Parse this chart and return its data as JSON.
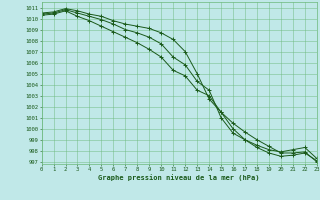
{
  "title": "Graphe pression niveau de la mer (hPa)",
  "background_color": "#c0e8e8",
  "grid_color": "#6ab87a",
  "line_color": "#1a5a1a",
  "marker_color": "#1a5a1a",
  "xlim": [
    0,
    23
  ],
  "ylim": [
    996.8,
    1011.5
  ],
  "xticks": [
    0,
    1,
    2,
    3,
    4,
    5,
    6,
    7,
    8,
    9,
    10,
    11,
    12,
    13,
    14,
    15,
    16,
    17,
    18,
    19,
    20,
    21,
    22,
    23
  ],
  "yticks": [
    997,
    998,
    999,
    1000,
    1001,
    1002,
    1003,
    1004,
    1005,
    1006,
    1007,
    1008,
    1009,
    1010,
    1011
  ],
  "series": [
    [
      1010.5,
      1010.6,
      1010.9,
      1010.7,
      1010.4,
      1010.2,
      1009.8,
      1009.5,
      1009.3,
      1009.1,
      1008.7,
      1008.1,
      1007.0,
      1005.0,
      1002.7,
      1001.5,
      1000.0,
      999.0,
      998.5,
      998.1,
      997.9,
      998.1,
      998.3,
      997.3
    ],
    [
      1010.4,
      1010.5,
      1010.8,
      1010.5,
      1010.2,
      1009.9,
      1009.5,
      1009.0,
      1008.7,
      1008.3,
      1007.7,
      1006.5,
      1005.8,
      1004.3,
      1003.5,
      1001.0,
      999.6,
      999.0,
      998.3,
      997.8,
      997.5,
      997.6,
      997.8,
      997.1
    ],
    [
      1010.3,
      1010.4,
      1010.7,
      1010.2,
      1009.8,
      1009.3,
      1008.8,
      1008.3,
      1007.8,
      1007.2,
      1006.5,
      1005.3,
      1004.8,
      1003.5,
      1003.0,
      1001.5,
      1000.5,
      999.7,
      999.0,
      998.4,
      997.8,
      997.8,
      997.9,
      997.0
    ]
  ]
}
